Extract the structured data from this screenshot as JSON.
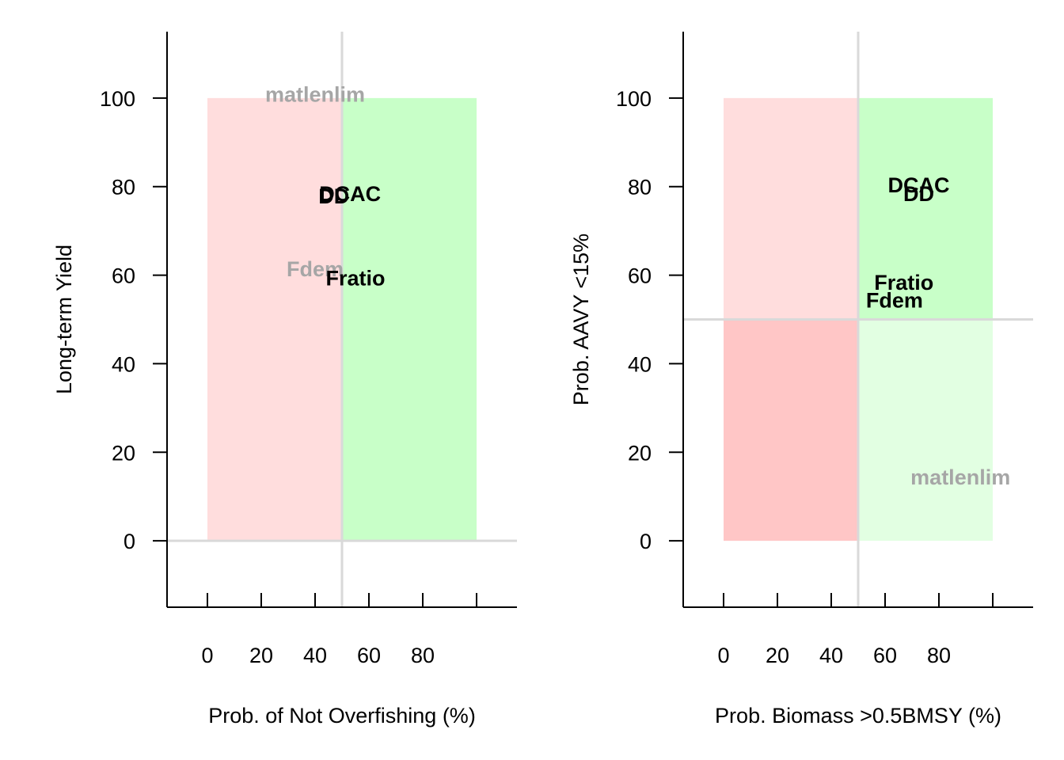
{
  "chart_data": [
    {
      "type": "scatter",
      "xlabel": "Prob. of Not Overfishing (%)",
      "ylabel": "Long-term Yield",
      "xlim": [
        -15,
        115
      ],
      "ylim": [
        -15,
        115
      ],
      "x_ticks": [
        0,
        20,
        40,
        60,
        80,
        100
      ],
      "x_tick_labels": [
        "0",
        "20",
        "40",
        "60",
        "80",
        ""
      ],
      "y_ticks": [
        0,
        20,
        40,
        60,
        80,
        100
      ],
      "y_tick_labels": [
        "0",
        "20",
        "40",
        "60",
        "80",
        "100"
      ],
      "vline": 50,
      "hline": 0,
      "regions": [
        {
          "x": [
            0,
            50
          ],
          "y": [
            0,
            100
          ],
          "color": "#ffdddd"
        },
        {
          "x": [
            50,
            100
          ],
          "y": [
            0,
            100
          ],
          "color": "#c8ffc8"
        }
      ],
      "points": [
        {
          "label": "matlenlim",
          "x": 40,
          "y": 101,
          "color": "#a6a6a6"
        },
        {
          "label": "DD",
          "x": 47,
          "y": 78,
          "color": "#000000"
        },
        {
          "label": "DCAC",
          "x": 53,
          "y": 78.5,
          "color": "#000000"
        },
        {
          "label": "Fdem",
          "x": 40,
          "y": 61.5,
          "color": "#a6a6a6"
        },
        {
          "label": "Fratio",
          "x": 55,
          "y": 59.5,
          "color": "#000000"
        }
      ]
    },
    {
      "type": "scatter",
      "xlabel": "Prob. Biomass >0.5BMSY (%)",
      "ylabel": "Prob. AAVY <15%",
      "xlim": [
        -15,
        115
      ],
      "ylim": [
        -15,
        115
      ],
      "x_ticks": [
        0,
        20,
        40,
        60,
        80,
        100
      ],
      "x_tick_labels": [
        "0",
        "20",
        "40",
        "60",
        "80",
        ""
      ],
      "y_ticks": [
        0,
        20,
        40,
        60,
        80,
        100
      ],
      "y_tick_labels": [
        "0",
        "20",
        "40",
        "60",
        "80",
        "100"
      ],
      "vline": 50,
      "hline": 50,
      "regions": [
        {
          "x": [
            0,
            50
          ],
          "y": [
            50,
            100
          ],
          "color": "#ffdddd"
        },
        {
          "x": [
            50,
            100
          ],
          "y": [
            50,
            100
          ],
          "color": "#c8ffc8"
        },
        {
          "x": [
            0,
            50
          ],
          "y": [
            0,
            50
          ],
          "color": "#ffc6c6"
        },
        {
          "x": [
            50,
            100
          ],
          "y": [
            0,
            50
          ],
          "color": "#e2ffe2"
        }
      ],
      "points": [
        {
          "label": "DCAC",
          "x": 72.5,
          "y": 80.5,
          "color": "#000000"
        },
        {
          "label": "DD",
          "x": 72.5,
          "y": 78.5,
          "color": "#000000"
        },
        {
          "label": "Fratio",
          "x": 67,
          "y": 58.5,
          "color": "#000000"
        },
        {
          "label": "Fdem",
          "x": 63.5,
          "y": 54.5,
          "color": "#000000"
        },
        {
          "label": "matlenlim",
          "x": 88,
          "y": 14.5,
          "color": "#a6a6a6"
        }
      ]
    }
  ]
}
